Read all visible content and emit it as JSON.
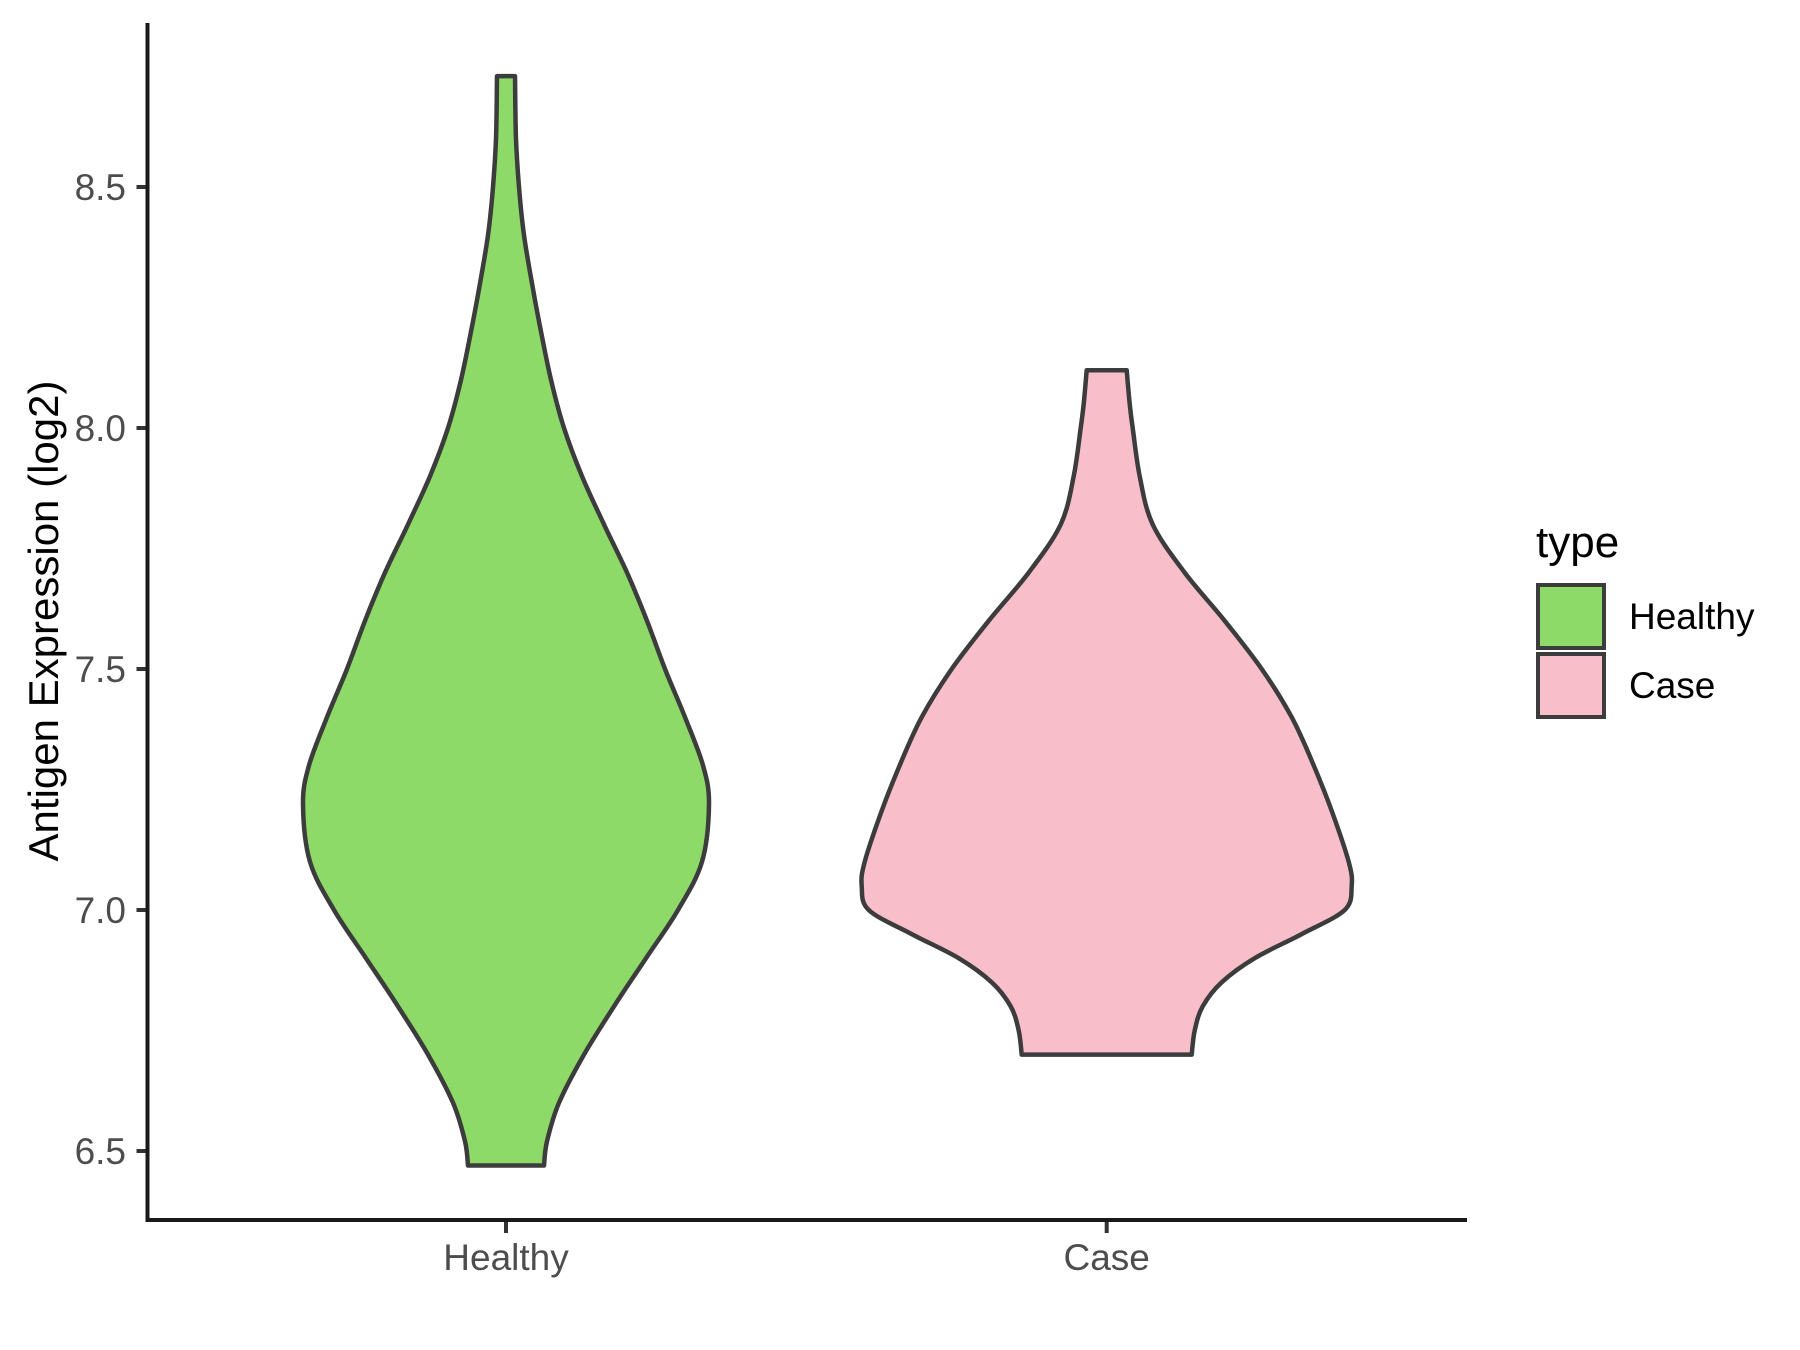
{
  "figure": {
    "background": "#FFFFFF"
  },
  "legend": {
    "title": "type"
  },
  "y_axis": {
    "title": "Antigen Expression (log2)"
  },
  "chart_data": {
    "type": "violin",
    "title": "",
    "xlabel": "",
    "ylabel": "Antigen Expression (log2)",
    "categories": [
      "Healthy",
      "Case"
    ],
    "y_ticks": [
      8.5,
      8.0,
      7.5,
      7.0,
      6.5
    ],
    "y_tick_labels": [
      "8.5",
      "8.0",
      "7.5",
      "7.0",
      "6.5"
    ],
    "ylim_shown": [
      6.3,
      8.85
    ],
    "legend_title": "type",
    "legend_position": "right",
    "outline_color": "#3C3C3C",
    "series": [
      {
        "name": "Healthy",
        "fill": "#8EDA68",
        "min": 6.47,
        "max": 8.73,
        "profile": [
          [
            8.73,
            9
          ],
          [
            8.6,
            10
          ],
          [
            8.5,
            13
          ],
          [
            8.4,
            18
          ],
          [
            8.3,
            26
          ],
          [
            8.2,
            35
          ],
          [
            8.1,
            45
          ],
          [
            8.0,
            58
          ],
          [
            7.9,
            76
          ],
          [
            7.8,
            98
          ],
          [
            7.7,
            121
          ],
          [
            7.6,
            141
          ],
          [
            7.5,
            159
          ],
          [
            7.4,
            179
          ],
          [
            7.3,
            197
          ],
          [
            7.22,
            203
          ],
          [
            7.1,
            196
          ],
          [
            7.0,
            172
          ],
          [
            6.9,
            140
          ],
          [
            6.8,
            108
          ],
          [
            6.7,
            78
          ],
          [
            6.6,
            53
          ],
          [
            6.52,
            41
          ],
          [
            6.47,
            38
          ]
        ]
      },
      {
        "name": "Case",
        "fill": "#F8BFCA",
        "min": 6.7,
        "max": 8.12,
        "profile": [
          [
            8.12,
            20
          ],
          [
            8.05,
            23
          ],
          [
            8.0,
            26
          ],
          [
            7.9,
            33
          ],
          [
            7.8,
            46
          ],
          [
            7.7,
            78
          ],
          [
            7.6,
            118
          ],
          [
            7.5,
            155
          ],
          [
            7.4,
            185
          ],
          [
            7.3,
            207
          ],
          [
            7.2,
            226
          ],
          [
            7.1,
            242
          ],
          [
            7.05,
            245
          ],
          [
            7.0,
            238
          ],
          [
            6.95,
            195
          ],
          [
            6.9,
            148
          ],
          [
            6.85,
            115
          ],
          [
            6.8,
            96
          ],
          [
            6.75,
            88
          ],
          [
            6.7,
            85
          ]
        ]
      }
    ]
  }
}
